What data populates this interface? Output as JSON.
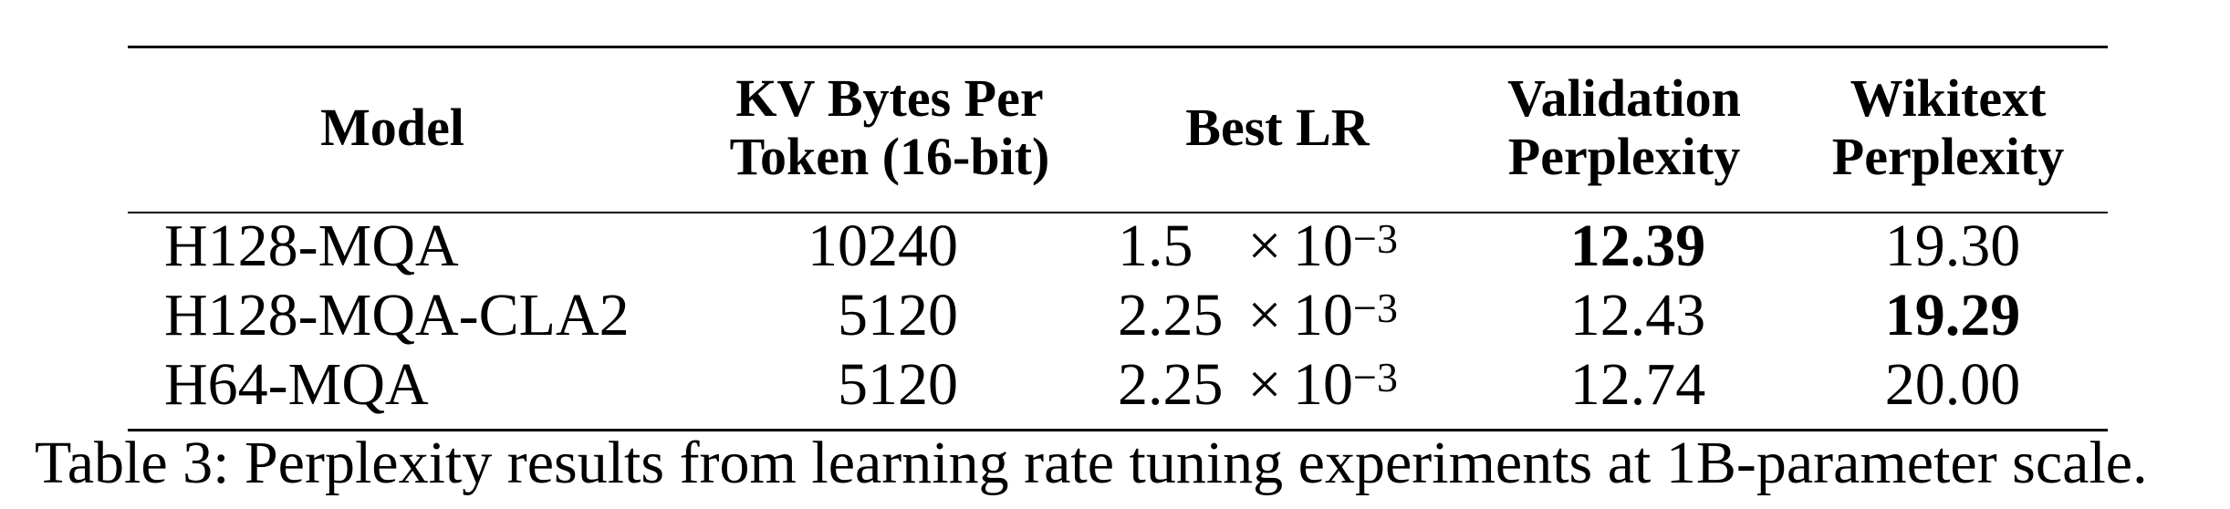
{
  "table": {
    "headers": {
      "model": [
        "Model"
      ],
      "kv_bytes": [
        "KV Bytes Per",
        "Token (16-bit)"
      ],
      "best_lr": [
        "Best LR"
      ],
      "validation": [
        "Validation",
        "Perplexity"
      ],
      "wikitext": [
        "Wikitext",
        "Perplexity"
      ]
    },
    "rows": [
      {
        "model": "H128-MQA",
        "kv_bytes": "10240",
        "lr_mantissa": "1.5",
        "lr_times": "×",
        "lr_base": "10",
        "lr_exponent": "−3",
        "validation": "12.39",
        "wikitext": "19.30",
        "validation_bold": true,
        "wikitext_bold": false
      },
      {
        "model": "H128-MQA-CLA2",
        "kv_bytes": "5120",
        "lr_mantissa": "2.25",
        "lr_times": "×",
        "lr_base": "10",
        "lr_exponent": "−3",
        "validation": "12.43",
        "wikitext": "19.29",
        "validation_bold": false,
        "wikitext_bold": true
      },
      {
        "model": "H64-MQA",
        "kv_bytes": "5120",
        "lr_mantissa": "2.25",
        "lr_times": "×",
        "lr_base": "10",
        "lr_exponent": "−3",
        "validation": "12.74",
        "wikitext": "20.00",
        "validation_bold": false,
        "wikitext_bold": false
      }
    ]
  },
  "caption": "Table 3: Perplexity results from learning rate tuning experiments at 1B-parameter scale."
}
